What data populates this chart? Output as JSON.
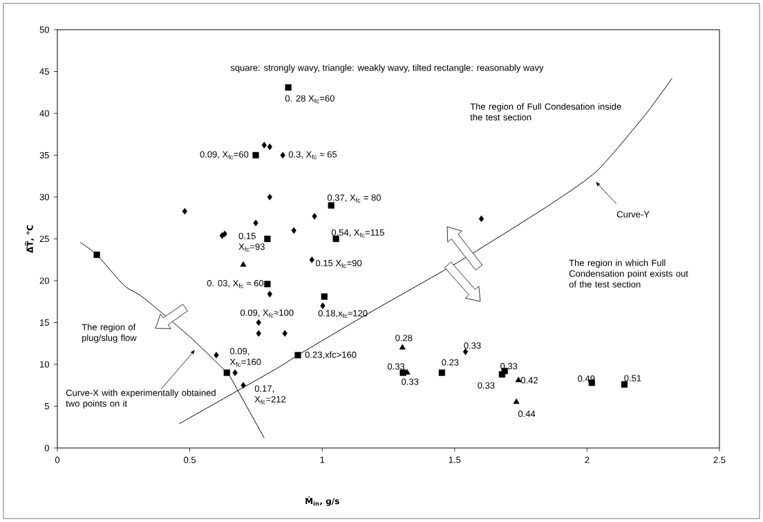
{
  "chart_data": {
    "type": "scatter",
    "xlabel": "Ṁ$_{in}$, g/s",
    "ylabel": "Δ̅T̅, °C",
    "xlim": [
      0,
      2.5
    ],
    "ylim": [
      0,
      50
    ],
    "xticks": [
      0,
      0.5,
      1,
      1.5,
      2,
      2.5
    ],
    "yticks": [
      0,
      5,
      10,
      15,
      20,
      25,
      30,
      35,
      40,
      45,
      50
    ],
    "series": [
      {
        "marker": "square",
        "color": "#000000",
        "x": [
          0.872,
          0.749,
          1.034,
          0.793,
          1.052,
          0.149,
          0.793,
          1.008,
          0.908,
          0.64,
          1.305,
          1.452,
          1.679,
          1.689,
          2.018,
          2.141
        ],
        "values": [
          43.1,
          35.0,
          29.0,
          25.0,
          25.0,
          23.1,
          19.6,
          18.1,
          11.1,
          9.0,
          9.0,
          9.0,
          8.8,
          9.2,
          7.8,
          7.6
        ]
      },
      {
        "marker": "triangle",
        "color": "#000000",
        "x": [
          0.702,
          1.303,
          1.321,
          1.741,
          1.733
        ],
        "values": [
          21.9,
          12.0,
          9.0,
          8.1,
          5.5
        ]
      },
      {
        "marker": "diamond",
        "color": "#000000",
        "x": [
          0.781,
          0.802,
          0.851,
          0.802,
          0.481,
          0.971,
          0.749,
          0.893,
          0.622,
          0.632,
          0.961,
          0.802,
          1.002,
          0.76,
          0.76,
          0.859,
          0.6,
          0.671,
          0.702,
          1.601,
          1.541
        ],
        "values": [
          36.2,
          36.0,
          35.0,
          30.0,
          28.3,
          27.7,
          26.9,
          26.0,
          25.4,
          25.6,
          22.5,
          18.4,
          17.0,
          15.0,
          13.7,
          13.7,
          11.1,
          9.0,
          7.5,
          27.4,
          11.5
        ]
      },
      {
        "type": "line",
        "marker": "none",
        "line_style": "solid",
        "color": "#000000",
        "x": [
          0.086,
          0.149,
          0.253,
          0.324,
          0.5,
          0.64,
          0.679,
          0.781
        ],
        "values": [
          24.6,
          23.1,
          19.4,
          18.0,
          13.3,
          9.0,
          7.0,
          1.2
        ]
      },
      {
        "type": "line",
        "marker": "none",
        "line_style": "solid",
        "color": "#000000",
        "x": [
          0.46,
          0.828,
          0.908,
          1.175,
          1.507,
          1.846,
          2.037,
          2.219,
          2.321
        ],
        "values": [
          2.9,
          9.5,
          11.1,
          16.1,
          22.1,
          28.8,
          33.1,
          39.8,
          44.2
        ]
      }
    ],
    "annotations": [
      "square: strongly wavy, triangle: weakly wavy, tilted rectangle: reasonably wavy",
      "The region of Full Condesation inside the test section",
      "Curve-Y",
      "The region in which Full Condensation point exists out of the test section",
      "The region of plug/slug flow",
      "Curve-X with experimentally obtained two points on it",
      {
        "text": "0. 28 X$_{fc}$=60",
        "x": 0.872,
        "y": 43.1
      },
      {
        "text": "0.09, X$_{fc}$=60",
        "x": 0.749,
        "y": 35.0
      },
      {
        "text": "0.3, X$_{fc}$ ≈ 65",
        "x": 0.851,
        "y": 35.0
      },
      {
        "text": "0.37, X$_{fc}$ = 80",
        "x": 1.034,
        "y": 29.0
      },
      {
        "text": "0.15 X$_{fc}$=93",
        "x": 0.793,
        "y": 25.0
      },
      {
        "text": "0.54, X$_{fc}$=115",
        "x": 1.052,
        "y": 25.0
      },
      {
        "text": "0.15 X$_{fc}$=90",
        "x": 0.961,
        "y": 22.5
      },
      {
        "text": "0. 03, X$_{fc}$ ≈ 60",
        "x": 0.793,
        "y": 19.6
      },
      {
        "text": "0.18,x$_{fc}$≈120",
        "x": 1.002,
        "y": 17.0
      },
      {
        "text": "0.09, X$_{fc}$≈100",
        "x": 0.76,
        "y": 15.0
      },
      {
        "text": "0.23,xfc>160",
        "x": 0.908,
        "y": 11.1
      },
      {
        "text": "0.09, X$_{fc}$=160",
        "x": 0.64,
        "y": 9.0
      },
      {
        "text": "0.17, X$_{fc}$=212",
        "x": 0.702,
        "y": 7.5
      },
      {
        "text": "0.28",
        "x": 1.303,
        "y": 12.0
      },
      {
        "text": "0.33",
        "x": 1.305,
        "y": 9.0
      },
      {
        "text": "0.33",
        "x": 1.321,
        "y": 9.0
      },
      {
        "text": "0.23",
        "x": 1.452,
        "y": 9.0
      },
      {
        "text": "0.33",
        "x": 1.541,
        "y": 11.5
      },
      {
        "text": "0.33",
        "x": 1.679,
        "y": 8.8
      },
      {
        "text": "0.33",
        "x": 1.689,
        "y": 9.2
      },
      {
        "text": "0.42",
        "x": 1.741,
        "y": 8.1
      },
      {
        "text": "0.44",
        "x": 1.733,
        "y": 5.5
      },
      {
        "text": "0.49",
        "x": 2.018,
        "y": 7.8
      },
      {
        "text": "0.51",
        "x": 2.141,
        "y": 7.6
      }
    ]
  }
}
